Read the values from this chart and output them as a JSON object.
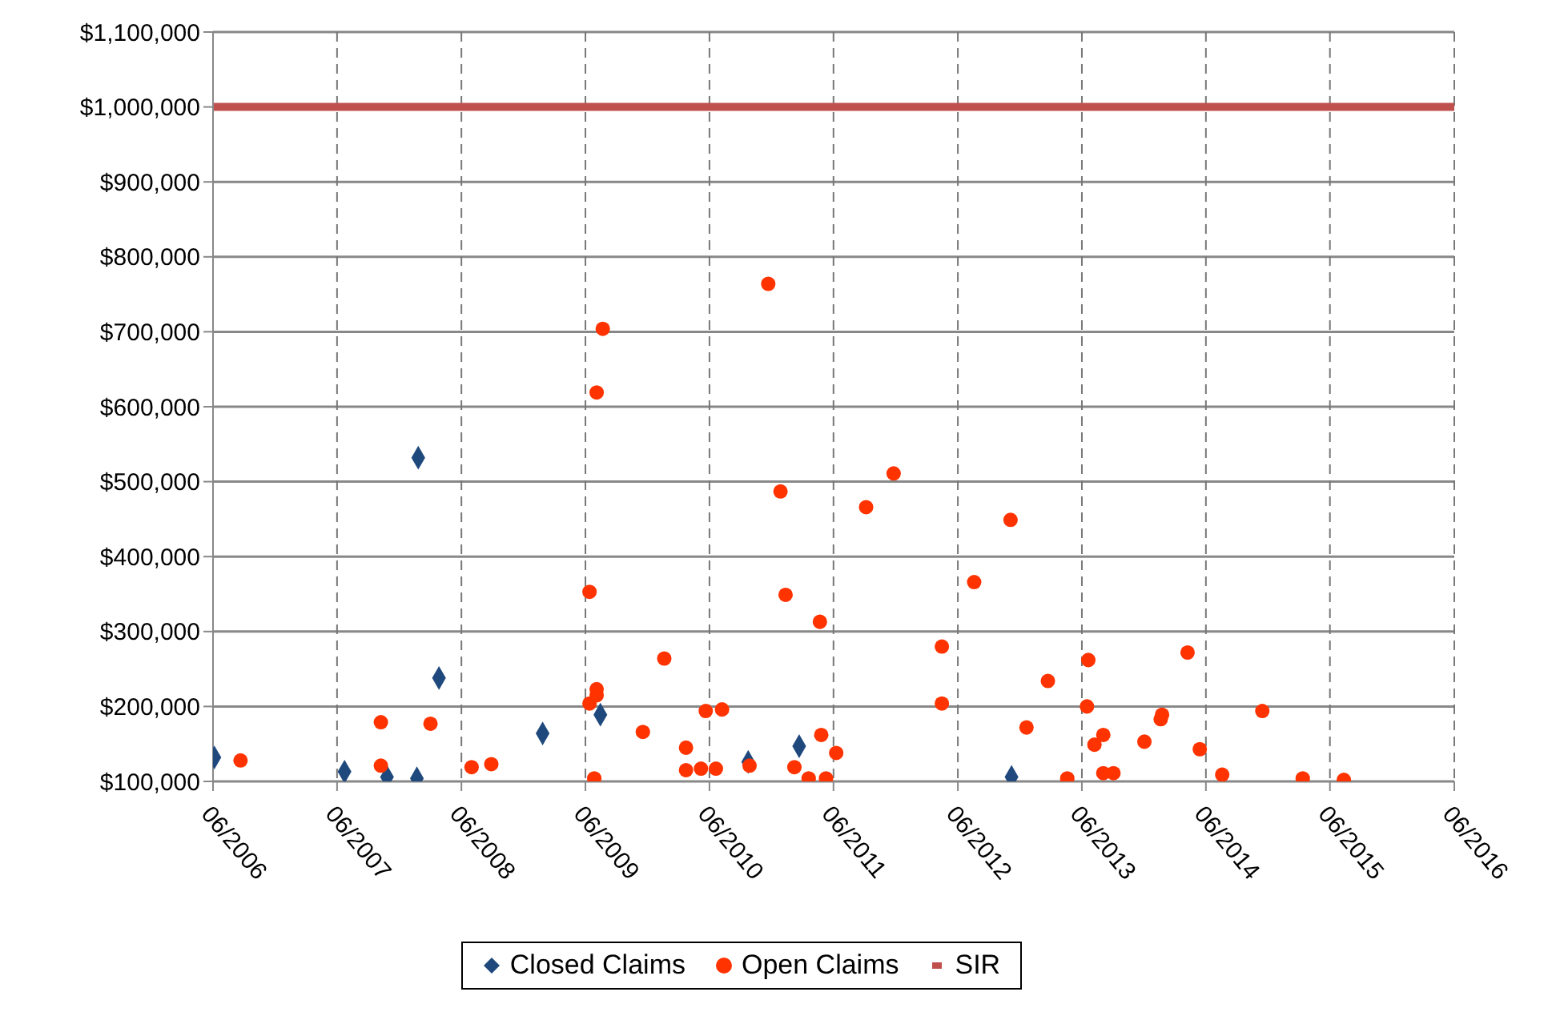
{
  "chart_data": {
    "type": "scatter",
    "xlim": [
      "2006-06",
      "2016-06"
    ],
    "ylim": [
      100000,
      1100000
    ],
    "xticks": [
      {
        "value": "2006-06",
        "label": "06/2006"
      },
      {
        "value": "2007-06",
        "label": "06/2007"
      },
      {
        "value": "2008-06",
        "label": "06/2008"
      },
      {
        "value": "2009-06",
        "label": "06/2009"
      },
      {
        "value": "2010-06",
        "label": "06/2010"
      },
      {
        "value": "2011-06",
        "label": "06/2011"
      },
      {
        "value": "2012-06",
        "label": "06/2012"
      },
      {
        "value": "2013-06",
        "label": "06/2013"
      },
      {
        "value": "2014-06",
        "label": "06/2014"
      },
      {
        "value": "2015-06",
        "label": "06/2015"
      },
      {
        "value": "2016-06",
        "label": "06/2016"
      }
    ],
    "yticks": [
      {
        "value": 100000,
        "label": "$100,000"
      },
      {
        "value": 200000,
        "label": "$200,000"
      },
      {
        "value": 300000,
        "label": "$300,000"
      },
      {
        "value": 400000,
        "label": "$400,000"
      },
      {
        "value": 500000,
        "label": "$500,000"
      },
      {
        "value": 600000,
        "label": "$600,000"
      },
      {
        "value": 700000,
        "label": "$700,000"
      },
      {
        "value": 800000,
        "label": "$800,000"
      },
      {
        "value": 900000,
        "label": "$900,000"
      },
      {
        "value": 1000000,
        "label": "$1,000,000"
      },
      {
        "value": 1100000,
        "label": "$1,100,000"
      }
    ],
    "grid": true,
    "legend": "bottom",
    "series": [
      {
        "name": "Closed Claims",
        "marker": "diamond",
        "color": "#1f497d",
        "x": [
          "2006-06-05",
          "2007-06-23",
          "2007-10-26",
          "2008-01-22",
          "2008-01-26",
          "2008-03-27",
          "2009-01-26",
          "2009-07-15",
          "2010-09-23",
          "2011-02-20",
          "2012-11-06"
        ],
        "values": [
          132000,
          113000,
          106000,
          104000,
          532000,
          238000,
          164000,
          189000,
          126000,
          147000,
          106000
        ]
      },
      {
        "name": "Open Claims",
        "marker": "circle",
        "color": "#ff3300",
        "x": [
          "2006-08-21",
          "2007-10-08",
          "2007-10-08",
          "2008-03-02",
          "2008-07-01",
          "2008-08-28",
          "2009-06-13",
          "2009-06-13",
          "2009-06-27",
          "2009-07-04",
          "2009-07-22",
          "2009-07-04",
          "2009-07-04",
          "2009-11-17",
          "2010-01-19",
          "2010-03-24",
          "2010-03-24",
          "2010-05-07",
          "2010-05-21",
          "2010-06-20",
          "2010-07-08",
          "2010-09-27",
          "2010-11-21",
          "2010-12-27",
          "2011-01-11",
          "2011-02-06",
          "2011-03-20",
          "2011-04-22",
          "2011-04-26",
          "2011-05-10",
          "2011-06-09",
          "2011-09-05",
          "2011-11-25",
          "2012-04-15",
          "2012-04-15",
          "2012-07-19",
          "2012-11-03",
          "2012-12-20",
          "2013-02-21",
          "2013-04-19",
          "2013-06-20",
          "2013-06-16",
          "2013-07-08",
          "2013-08-03",
          "2013-08-03",
          "2013-09-02",
          "2013-12-02",
          "2014-01-19",
          "2014-01-23",
          "2014-04-08",
          "2014-05-14",
          "2014-07-19",
          "2014-11-14",
          "2015-03-13",
          "2015-07-12"
        ],
        "values": [
          128000,
          179000,
          121000,
          177000,
          119000,
          123000,
          353000,
          204000,
          104000,
          619000,
          704000,
          223000,
          215000,
          166000,
          264000,
          145000,
          115000,
          117000,
          194000,
          117000,
          196000,
          121000,
          764000,
          487000,
          349000,
          119000,
          104000,
          313000,
          162000,
          104000,
          138000,
          466000,
          511000,
          280000,
          204000,
          366000,
          449000,
          172000,
          234000,
          104000,
          262000,
          200000,
          149000,
          162000,
          111000,
          111000,
          153000,
          183000,
          189000,
          272000,
          143000,
          109000,
          194000,
          104000,
          102000
        ]
      },
      {
        "name": "SIR",
        "type": "line",
        "marker": "none",
        "color": "#c0504d",
        "x": [
          "2006-06",
          "2016-06"
        ],
        "values": [
          1000000,
          1000000
        ]
      }
    ]
  }
}
